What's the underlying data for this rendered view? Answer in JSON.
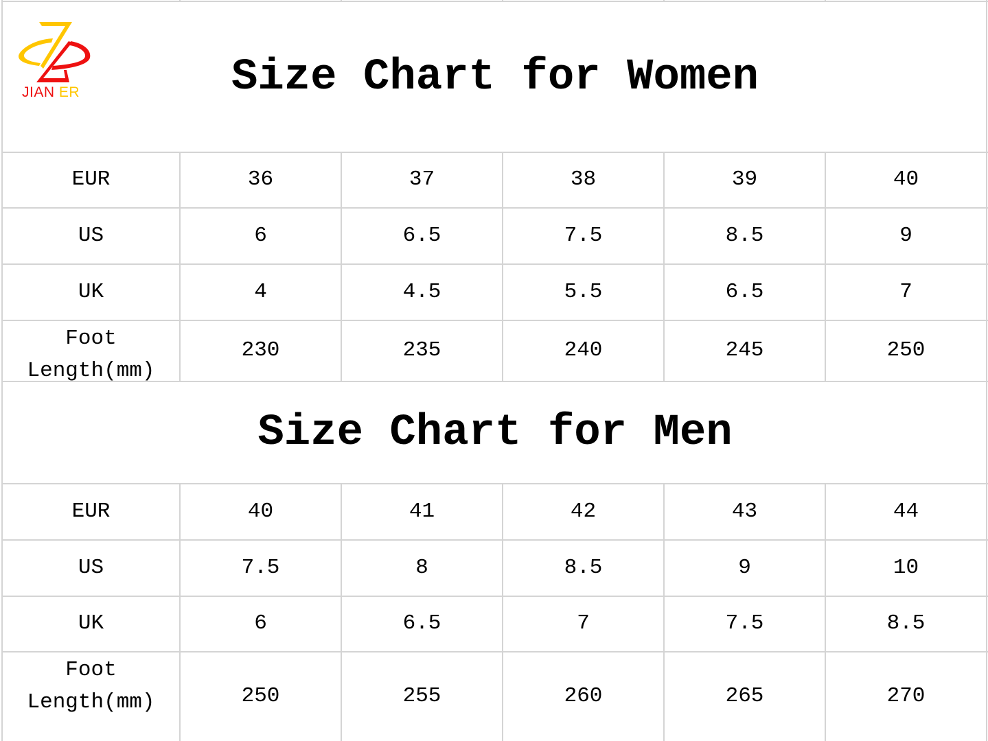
{
  "logo": {
    "word1": "JIAN",
    "word2": "ER",
    "colors": {
      "red": "#ee1111",
      "yellow": "#ffc600"
    }
  },
  "women": {
    "title": "Size Chart for Women",
    "rows": [
      {
        "label": "EUR",
        "values": [
          "36",
          "37",
          "38",
          "39",
          "40"
        ]
      },
      {
        "label": "US",
        "values": [
          "6",
          "6.5",
          "7.5",
          "8.5",
          "9"
        ]
      },
      {
        "label": "UK",
        "values": [
          "4",
          "4.5",
          "5.5",
          "6.5",
          "7"
        ]
      },
      {
        "label": "Foot\nLength(mm)",
        "values": [
          "230",
          "235",
          "240",
          "245",
          "250"
        ]
      }
    ]
  },
  "men": {
    "title": "Size Chart for Men",
    "rows": [
      {
        "label": "EUR",
        "values": [
          "40",
          "41",
          "42",
          "43",
          "44"
        ]
      },
      {
        "label": "US",
        "values": [
          "7.5",
          "8",
          "8.5",
          "9",
          "10"
        ]
      },
      {
        "label": "UK",
        "values": [
          "6",
          "6.5",
          "7",
          "7.5",
          "8.5"
        ]
      },
      {
        "label": "Foot\nLength(mm)",
        "values": [
          "250",
          "255",
          "260",
          "265",
          "270"
        ]
      }
    ]
  },
  "grid_color": "#d4d4d4"
}
